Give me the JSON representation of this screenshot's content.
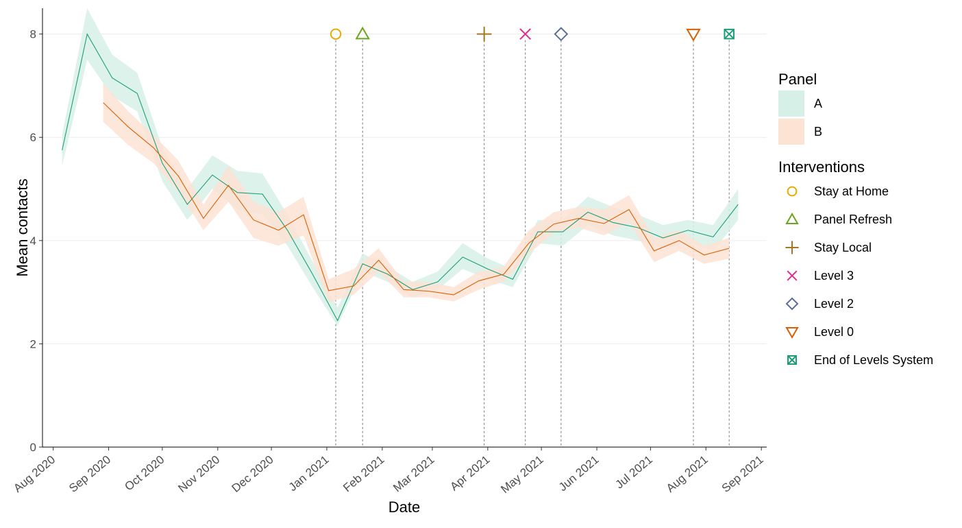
{
  "chart_data": {
    "type": "line",
    "xlabel": "Date",
    "ylabel": "Mean contacts",
    "x_ticks": [
      "Aug 2020",
      "Sep 2020",
      "Oct 2020",
      "Nov 2020",
      "Dec 2020",
      "Jan 2021",
      "Feb 2021",
      "Mar 2021",
      "Apr 2021",
      "May 2021",
      "Jun 2021",
      "Jul 2021",
      "Aug 2021",
      "Sep 2021"
    ],
    "y_ticks": [
      "0",
      "2",
      "4",
      "6",
      "8"
    ],
    "ylim": [
      0,
      8.5
    ],
    "xlim": [
      "2020-07-26",
      "2021-09-04"
    ],
    "grid": "horizontal",
    "legend_placement": "right",
    "legend_panel_title": "Panel",
    "legend_interventions_title": "Interventions",
    "series": [
      {
        "name": "A",
        "line_color": "#1b9e77",
        "band_color": "#d6f0e8",
        "points": [
          {
            "x": "2020-08-06",
            "y": 5.75,
            "lo": 5.45,
            "hi": 6.05
          },
          {
            "x": "2020-08-20",
            "y": 8.0,
            "lo": 7.5,
            "hi": 8.5
          },
          {
            "x": "2020-09-03",
            "y": 7.15,
            "lo": 6.8,
            "hi": 7.6
          },
          {
            "x": "2020-09-17",
            "y": 6.85,
            "lo": 6.5,
            "hi": 7.25
          },
          {
            "x": "2020-10-01",
            "y": 5.5,
            "lo": 5.15,
            "hi": 5.8
          },
          {
            "x": "2020-10-15",
            "y": 4.7,
            "lo": 4.4,
            "hi": 5.0
          },
          {
            "x": "2020-10-29",
            "y": 5.27,
            "lo": 5.0,
            "hi": 5.65
          },
          {
            "x": "2020-11-12",
            "y": 4.93,
            "lo": 4.6,
            "hi": 5.35
          },
          {
            "x": "2020-11-26",
            "y": 4.9,
            "lo": 4.5,
            "hi": 5.3
          },
          {
            "x": "2020-12-10",
            "y": 4.2,
            "lo": 3.9,
            "hi": 4.5
          },
          {
            "x": "2020-12-24",
            "y": 3.35,
            "lo": 3.1,
            "hi": 3.6
          },
          {
            "x": "2021-01-07",
            "y": 2.45,
            "lo": 2.35,
            "hi": 2.7
          },
          {
            "x": "2021-01-21",
            "y": 3.55,
            "lo": 3.4,
            "hi": 3.75
          },
          {
            "x": "2021-02-04",
            "y": 3.35,
            "lo": 3.2,
            "hi": 3.5
          },
          {
            "x": "2021-02-18",
            "y": 3.05,
            "lo": 2.9,
            "hi": 3.2
          },
          {
            "x": "2021-03-04",
            "y": 3.2,
            "lo": 3.05,
            "hi": 3.4
          },
          {
            "x": "2021-03-18",
            "y": 3.68,
            "lo": 3.45,
            "hi": 3.95
          },
          {
            "x": "2021-04-01",
            "y": 3.45,
            "lo": 3.25,
            "hi": 3.65
          },
          {
            "x": "2021-04-15",
            "y": 3.25,
            "lo": 3.1,
            "hi": 3.45
          },
          {
            "x": "2021-04-29",
            "y": 4.17,
            "lo": 3.95,
            "hi": 4.4
          },
          {
            "x": "2021-05-13",
            "y": 4.17,
            "lo": 3.9,
            "hi": 4.4
          },
          {
            "x": "2021-05-27",
            "y": 4.55,
            "lo": 4.3,
            "hi": 4.85
          },
          {
            "x": "2021-06-10",
            "y": 4.35,
            "lo": 4.1,
            "hi": 4.65
          },
          {
            "x": "2021-06-24",
            "y": 4.25,
            "lo": 4.0,
            "hi": 4.5
          },
          {
            "x": "2021-07-08",
            "y": 4.05,
            "lo": 3.85,
            "hi": 4.3
          },
          {
            "x": "2021-07-22",
            "y": 4.2,
            "lo": 3.95,
            "hi": 4.4
          },
          {
            "x": "2021-08-05",
            "y": 4.07,
            "lo": 3.8,
            "hi": 4.3
          },
          {
            "x": "2021-08-19",
            "y": 4.7,
            "lo": 4.4,
            "hi": 5.0
          }
        ]
      },
      {
        "name": "B",
        "line_color": "#d95f02",
        "band_color": "#fde3d4",
        "points": [
          {
            "x": "2020-08-29",
            "y": 6.67,
            "lo": 6.3,
            "hi": 7.05
          },
          {
            "x": "2020-09-12",
            "y": 6.2,
            "lo": 5.85,
            "hi": 6.5
          },
          {
            "x": "2020-09-26",
            "y": 5.8,
            "lo": 5.5,
            "hi": 6.05
          },
          {
            "x": "2020-10-10",
            "y": 5.25,
            "lo": 4.95,
            "hi": 5.55
          },
          {
            "x": "2020-10-24",
            "y": 4.43,
            "lo": 4.2,
            "hi": 4.7
          },
          {
            "x": "2020-11-07",
            "y": 5.07,
            "lo": 4.75,
            "hi": 5.45
          },
          {
            "x": "2020-11-21",
            "y": 4.4,
            "lo": 4.05,
            "hi": 4.75
          },
          {
            "x": "2020-12-05",
            "y": 4.2,
            "lo": 3.9,
            "hi": 4.55
          },
          {
            "x": "2020-12-19",
            "y": 4.5,
            "lo": 4.1,
            "hi": 4.85
          },
          {
            "x": "2021-01-02",
            "y": 3.03,
            "lo": 2.8,
            "hi": 3.25
          },
          {
            "x": "2021-01-16",
            "y": 3.12,
            "lo": 2.95,
            "hi": 3.45
          },
          {
            "x": "2021-01-30",
            "y": 3.62,
            "lo": 3.4,
            "hi": 3.85
          },
          {
            "x": "2021-02-13",
            "y": 3.05,
            "lo": 2.9,
            "hi": 3.2
          },
          {
            "x": "2021-02-27",
            "y": 3.02,
            "lo": 2.9,
            "hi": 3.2
          },
          {
            "x": "2021-03-13",
            "y": 2.95,
            "lo": 2.82,
            "hi": 3.1
          },
          {
            "x": "2021-03-27",
            "y": 3.22,
            "lo": 3.05,
            "hi": 3.4
          },
          {
            "x": "2021-04-10",
            "y": 3.35,
            "lo": 3.2,
            "hi": 3.5
          },
          {
            "x": "2021-04-24",
            "y": 3.95,
            "lo": 3.75,
            "hi": 4.2
          },
          {
            "x": "2021-05-08",
            "y": 4.32,
            "lo": 4.15,
            "hi": 4.55
          },
          {
            "x": "2021-05-22",
            "y": 4.43,
            "lo": 4.25,
            "hi": 4.65
          },
          {
            "x": "2021-06-05",
            "y": 4.33,
            "lo": 4.1,
            "hi": 4.6
          },
          {
            "x": "2021-06-19",
            "y": 4.6,
            "lo": 4.35,
            "hi": 4.88
          },
          {
            "x": "2021-07-03",
            "y": 3.8,
            "lo": 3.58,
            "hi": 4.05
          },
          {
            "x": "2021-07-17",
            "y": 4.0,
            "lo": 3.8,
            "hi": 4.2
          },
          {
            "x": "2021-07-31",
            "y": 3.72,
            "lo": 3.55,
            "hi": 3.9
          },
          {
            "x": "2021-08-14",
            "y": 3.85,
            "lo": 3.65,
            "hi": 4.05
          }
        ]
      }
    ],
    "interventions": [
      {
        "name": "Stay at Home",
        "date": "2021-01-06",
        "y": 8,
        "shape": "circle",
        "color": "#e6ab02"
      },
      {
        "name": "Panel Refresh",
        "date": "2021-01-21",
        "y": 8,
        "shape": "triangle",
        "color": "#66a61e"
      },
      {
        "name": "Stay Local",
        "date": "2021-03-30",
        "y": 8,
        "shape": "plus",
        "color": "#a6761d"
      },
      {
        "name": "Level 3",
        "date": "2021-04-22",
        "y": 8,
        "shape": "cross",
        "color": "#e7298a"
      },
      {
        "name": "Level 2",
        "date": "2021-05-12",
        "y": 8,
        "shape": "diamond",
        "color": "#5a6e96"
      },
      {
        "name": "Level 0",
        "date": "2021-07-25",
        "y": 8,
        "shape": "triangle-down",
        "color": "#d95f02"
      },
      {
        "name": "End of Levels System",
        "date": "2021-08-14",
        "y": 8,
        "shape": "box-x",
        "color": "#1b9e77"
      }
    ]
  }
}
